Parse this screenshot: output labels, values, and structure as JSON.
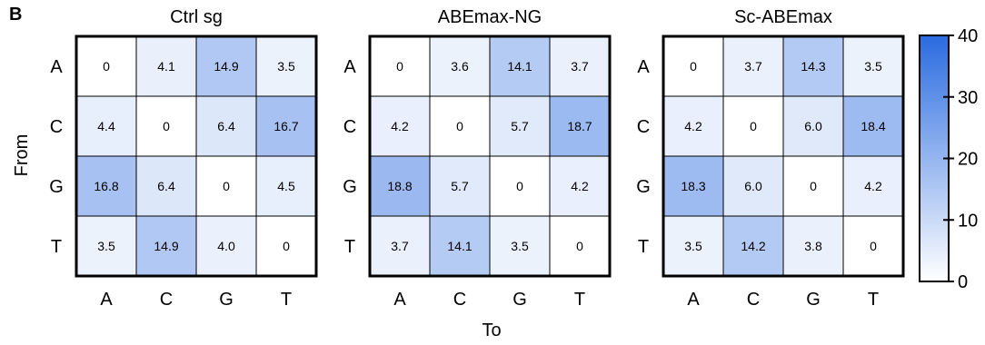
{
  "panel_label": "B",
  "y_axis_title": "From",
  "x_axis_title": "To",
  "row_labels": [
    "A",
    "C",
    "G",
    "T"
  ],
  "col_labels": [
    "A",
    "C",
    "G",
    "T"
  ],
  "colorbar": {
    "ticks": [
      "40",
      "30",
      "20",
      "10",
      "0"
    ],
    "min": 0,
    "max": 40,
    "low_color": "#ffffff",
    "high_color": "#2a6be0"
  },
  "chart_data": [
    {
      "type": "heatmap",
      "title": "Ctrl sg",
      "rows": [
        "A",
        "C",
        "G",
        "T"
      ],
      "cols": [
        "A",
        "C",
        "G",
        "T"
      ],
      "values": [
        [
          0,
          4.1,
          14.9,
          3.5
        ],
        [
          4.4,
          0,
          6.4,
          16.7
        ],
        [
          16.8,
          6.4,
          0,
          4.5
        ],
        [
          3.5,
          14.9,
          4.0,
          0
        ]
      ],
      "labels": [
        [
          "0",
          "4.1",
          "14.9",
          "3.5"
        ],
        [
          "4.4",
          "0",
          "6.4",
          "16.7"
        ],
        [
          "16.8",
          "6.4",
          "0",
          "4.5"
        ],
        [
          "3.5",
          "14.9",
          "4.0",
          "0"
        ]
      ]
    },
    {
      "type": "heatmap",
      "title": "ABEmax-NG",
      "rows": [
        "A",
        "C",
        "G",
        "T"
      ],
      "cols": [
        "A",
        "C",
        "G",
        "T"
      ],
      "values": [
        [
          0,
          3.6,
          14.1,
          3.7
        ],
        [
          4.2,
          0,
          5.7,
          18.7
        ],
        [
          18.8,
          5.7,
          0,
          4.2
        ],
        [
          3.7,
          14.1,
          3.5,
          0
        ]
      ],
      "labels": [
        [
          "0",
          "3.6",
          "14.1",
          "3.7"
        ],
        [
          "4.2",
          "0",
          "5.7",
          "18.7"
        ],
        [
          "18.8",
          "5.7",
          "0",
          "4.2"
        ],
        [
          "3.7",
          "14.1",
          "3.5",
          "0"
        ]
      ]
    },
    {
      "type": "heatmap",
      "title": "Sc-ABEmax",
      "rows": [
        "A",
        "C",
        "G",
        "T"
      ],
      "cols": [
        "A",
        "C",
        "G",
        "T"
      ],
      "values": [
        [
          0,
          3.7,
          14.3,
          3.5
        ],
        [
          4.2,
          0,
          6.0,
          18.4
        ],
        [
          18.3,
          6.0,
          0,
          4.2
        ],
        [
          3.5,
          14.2,
          3.8,
          0
        ]
      ],
      "labels": [
        [
          "0",
          "3.7",
          "14.3",
          "3.5"
        ],
        [
          "4.2",
          "0",
          "6.0",
          "18.4"
        ],
        [
          "18.3",
          "6.0",
          "0",
          "4.2"
        ],
        [
          "3.5",
          "14.2",
          "3.8",
          "0"
        ]
      ]
    }
  ]
}
